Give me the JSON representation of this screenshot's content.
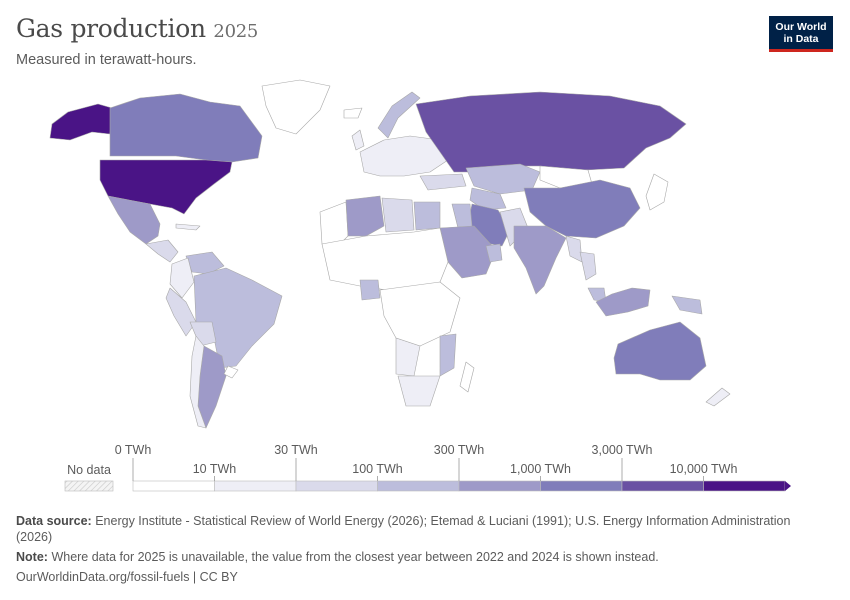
{
  "header": {
    "title": "Gas production",
    "year": "2025",
    "subtitle": "Measured in terawatt-hours."
  },
  "logo": {
    "line1": "Our World",
    "line2": "in Data"
  },
  "legend": {
    "no_data_label": "No data",
    "upper_ticks": [
      "0 TWh",
      "30 TWh",
      "300 TWh",
      "3,000 TWh"
    ],
    "lower_ticks": [
      "10 TWh",
      "100 TWh",
      "1,000 TWh",
      "10,000 TWh"
    ],
    "colors": [
      "#ffffff",
      "#eeeef6",
      "#dadaeb",
      "#bcbddc",
      "#9e9ac8",
      "#807dba",
      "#6a51a3",
      "#4a1486"
    ]
  },
  "map_data": {
    "type": "choropleth",
    "unit": "TWh",
    "bins": [
      "0",
      "10",
      "30",
      "100",
      "300",
      "1,000",
      "3,000",
      "10,000"
    ],
    "colors": {
      "no_data": "#ffffff",
      "usa": "#4a1486",
      "russia": "#6a51a3",
      "canada": "#807dba",
      "china": "#807dba",
      "australia": "#807dba",
      "iran": "#807dba",
      "alaska": "#4a1486",
      "mexico": "#9e9ac8",
      "argentina": "#9e9ac8",
      "saudi": "#9e9ac8",
      "india": "#9e9ac8",
      "brazil": "#bcbddc",
      "algeria": "#9e9ac8",
      "egypt": "#bcbddc",
      "indonesia": "#9e9ac8",
      "default_land": "#ffffff",
      "low": "#eeeef6",
      "mid": "#dadaeb"
    }
  },
  "footer": {
    "source_label": "Data source:",
    "source_text": "Energy Institute - Statistical Review of World Energy (2026); Etemad & Luciani (1991); U.S. Energy Information Administration (2026)",
    "note_label": "Note:",
    "note_text": "Where data for 2025 is unavailable, the value from the closest year between 2022 and 2024 is shown instead.",
    "url": "OurWorldinData.org/fossil-fuels | CC BY"
  }
}
